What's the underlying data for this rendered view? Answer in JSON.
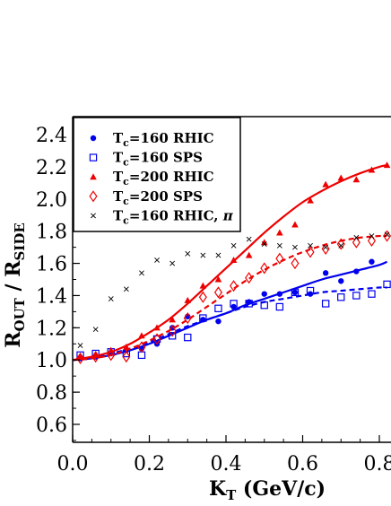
{
  "chart_data": {
    "type": "scatter",
    "xlabel": "K_T (GeV/c)",
    "xlabel_main": "K",
    "xlabel_sub": "T",
    "xlabel_unit": " (GeV/c)",
    "ylabel": "R_OUT / R_SIDE",
    "ylabel_main1": "R",
    "ylabel_sub1": "OUT",
    "ylabel_mid": " / R",
    "ylabel_sub2": "SIDE",
    "xlim": [
      0.0,
      0.82
    ],
    "ylim": [
      0.5,
      2.5
    ],
    "x_ticks": [
      "0.0",
      "0.2",
      "0.4",
      "0.6",
      "0.8"
    ],
    "y_ticks": [
      "0.6",
      "0.8",
      "1.0",
      "1.2",
      "1.4",
      "1.6",
      "1.8",
      "2.0",
      "2.2",
      "2.4"
    ],
    "legend_position": "top-left",
    "series": [
      {
        "name": "T_c=160 RHIC",
        "label_main": "T",
        "label_sub": "c",
        "label_rest": "=160 RHIC",
        "marker": "filled-circle",
        "color": "#0000ee",
        "x": [
          0.02,
          0.06,
          0.1,
          0.14,
          0.18,
          0.22,
          0.26,
          0.3,
          0.34,
          0.38,
          0.42,
          0.46,
          0.5,
          0.54,
          0.58,
          0.62,
          0.66,
          0.7,
          0.74,
          0.78
        ],
        "y": [
          1.01,
          1.02,
          1.04,
          1.06,
          1.07,
          1.1,
          1.2,
          1.27,
          1.25,
          1.24,
          1.33,
          1.36,
          1.41,
          1.41,
          1.42,
          1.41,
          1.54,
          1.49,
          1.55,
          1.61
        ],
        "fit_x": [
          0.0,
          0.05,
          0.1,
          0.15,
          0.2,
          0.25,
          0.3,
          0.35,
          0.4,
          0.45,
          0.5,
          0.55,
          0.6,
          0.65,
          0.7,
          0.75,
          0.8,
          0.82
        ],
        "fit_y": [
          1.0,
          1.01,
          1.03,
          1.06,
          1.1,
          1.15,
          1.2,
          1.25,
          1.29,
          1.34,
          1.38,
          1.42,
          1.46,
          1.5,
          1.53,
          1.56,
          1.59,
          1.61
        ],
        "fit_style": "solid"
      },
      {
        "name": "T_c=160 SPS",
        "label_main": "T",
        "label_sub": "c",
        "label_rest": "=160 SPS",
        "marker": "open-square",
        "color": "#0000ee",
        "x": [
          0.02,
          0.06,
          0.1,
          0.14,
          0.18,
          0.22,
          0.26,
          0.3,
          0.34,
          0.38,
          0.42,
          0.46,
          0.5,
          0.54,
          0.58,
          0.62,
          0.66,
          0.7,
          0.74,
          0.78,
          0.82
        ],
        "y": [
          1.03,
          1.04,
          1.05,
          1.04,
          1.03,
          1.13,
          1.15,
          1.14,
          1.26,
          1.32,
          1.35,
          1.35,
          1.34,
          1.33,
          1.42,
          1.43,
          1.35,
          1.39,
          1.4,
          1.41,
          1.47
        ],
        "fit_x": [
          0.0,
          0.05,
          0.1,
          0.15,
          0.2,
          0.25,
          0.3,
          0.35,
          0.4,
          0.45,
          0.5,
          0.55,
          0.6,
          0.65,
          0.7,
          0.75,
          0.8,
          0.82
        ],
        "fit_y": [
          1.0,
          1.01,
          1.04,
          1.07,
          1.11,
          1.16,
          1.21,
          1.25,
          1.29,
          1.33,
          1.36,
          1.38,
          1.4,
          1.42,
          1.43,
          1.44,
          1.45,
          1.45
        ],
        "fit_style": "dashed"
      },
      {
        "name": "T_c=200 RHIC",
        "label_main": "T",
        "label_sub": "c",
        "label_rest": "=200 RHIC",
        "marker": "filled-triangle",
        "color": "#ee0000",
        "x": [
          0.02,
          0.06,
          0.1,
          0.14,
          0.18,
          0.22,
          0.26,
          0.3,
          0.34,
          0.38,
          0.42,
          0.46,
          0.5,
          0.54,
          0.58,
          0.62,
          0.66,
          0.7,
          0.74,
          0.78,
          0.82
        ],
        "y": [
          1.02,
          1.03,
          1.06,
          1.08,
          1.15,
          1.2,
          1.25,
          1.37,
          1.46,
          1.5,
          1.62,
          1.65,
          1.73,
          1.79,
          1.84,
          1.99,
          2.09,
          2.13,
          2.12,
          2.18,
          2.21
        ],
        "fit_x": [
          0.0,
          0.05,
          0.1,
          0.15,
          0.2,
          0.25,
          0.3,
          0.35,
          0.4,
          0.45,
          0.5,
          0.55,
          0.6,
          0.65,
          0.7,
          0.75,
          0.8,
          0.82
        ],
        "fit_y": [
          1.0,
          1.02,
          1.05,
          1.1,
          1.17,
          1.25,
          1.35,
          1.46,
          1.57,
          1.68,
          1.79,
          1.89,
          1.98,
          2.05,
          2.11,
          2.16,
          2.2,
          2.21
        ],
        "fit_style": "solid"
      },
      {
        "name": "T_c=200 SPS",
        "label_main": "T",
        "label_sub": "c",
        "label_rest": "=200 SPS",
        "marker": "open-diamond",
        "color": "#ee0000",
        "x": [
          0.02,
          0.06,
          0.1,
          0.14,
          0.18,
          0.22,
          0.26,
          0.3,
          0.34,
          0.38,
          0.42,
          0.46,
          0.5,
          0.54,
          0.58,
          0.62,
          0.66,
          0.7,
          0.74,
          0.78,
          0.82
        ],
        "y": [
          1.01,
          1.02,
          1.03,
          1.02,
          1.08,
          1.13,
          1.18,
          1.26,
          1.39,
          1.42,
          1.46,
          1.51,
          1.57,
          1.63,
          1.6,
          1.67,
          1.69,
          1.72,
          1.73,
          1.74,
          1.77
        ],
        "fit_x": [
          0.0,
          0.05,
          0.1,
          0.15,
          0.2,
          0.25,
          0.3,
          0.35,
          0.4,
          0.45,
          0.5,
          0.55,
          0.6,
          0.65,
          0.7,
          0.75,
          0.8,
          0.82
        ],
        "fit_y": [
          1.0,
          1.01,
          1.03,
          1.07,
          1.12,
          1.18,
          1.25,
          1.33,
          1.41,
          1.49,
          1.56,
          1.62,
          1.67,
          1.71,
          1.74,
          1.76,
          1.77,
          1.77
        ],
        "fit_style": "dashed"
      },
      {
        "name": "T_c=160 RHIC, π",
        "label_main": "T",
        "label_sub": "c",
        "label_rest": "=160 RHIC, ",
        "label_greek": "π",
        "marker": "cross",
        "color": "#000000",
        "x": [
          0.02,
          0.06,
          0.1,
          0.14,
          0.18,
          0.22,
          0.26,
          0.3,
          0.34,
          0.38,
          0.42,
          0.46,
          0.5,
          0.54,
          0.58,
          0.62,
          0.66,
          0.7,
          0.74,
          0.78,
          0.82
        ],
        "y": [
          1.09,
          1.19,
          1.38,
          1.44,
          1.54,
          1.62,
          1.6,
          1.66,
          1.65,
          1.65,
          1.71,
          1.75,
          1.72,
          1.71,
          1.7,
          1.71,
          1.7,
          1.71,
          1.76,
          1.77,
          1.78
        ]
      }
    ]
  },
  "colors": {
    "blue": "#0000ee",
    "red": "#ee0000",
    "black": "#000000"
  }
}
